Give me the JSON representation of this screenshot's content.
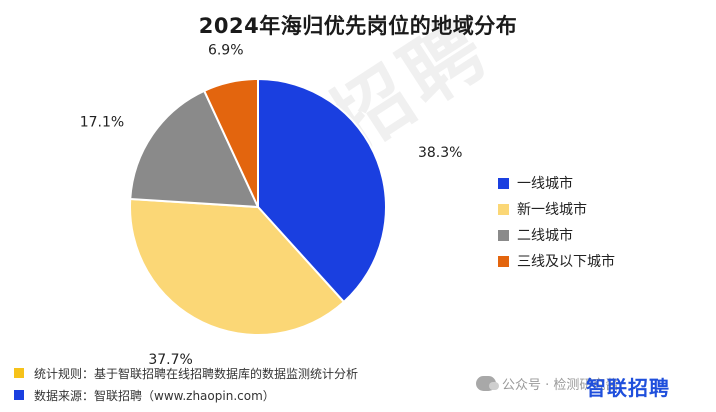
{
  "title": "2024年海归优先岗位的地域分布",
  "watermark": "智联招聘",
  "chart_data": {
    "type": "pie",
    "title": "2024年海归优先岗位的地域分布",
    "legend_position": "right",
    "slices": [
      {
        "label": "一线城市",
        "value": 38.3,
        "display": "38.3%",
        "color": "#1a3fe0"
      },
      {
        "label": "新一线城市",
        "value": 37.7,
        "display": "37.7%",
        "color": "#fbd776"
      },
      {
        "label": "二线城市",
        "value": 17.1,
        "display": "17.1%",
        "color": "#8a8a8a"
      },
      {
        "label": "三线及以下城市",
        "value": 6.9,
        "display": "6.9%",
        "color": "#e3650e"
      }
    ]
  },
  "footer": {
    "rule_label": "统计规则：基于智联招聘在线招聘数据库的数据监测统计分析",
    "rule_color": "#f6c21a",
    "source_label": "数据来源：智联招聘（www.zhaopin.com）",
    "source_color": "#1a3fe0",
    "brand": "智联招聘"
  },
  "wechat": {
    "text": "公众号 · 检测研究酱"
  }
}
